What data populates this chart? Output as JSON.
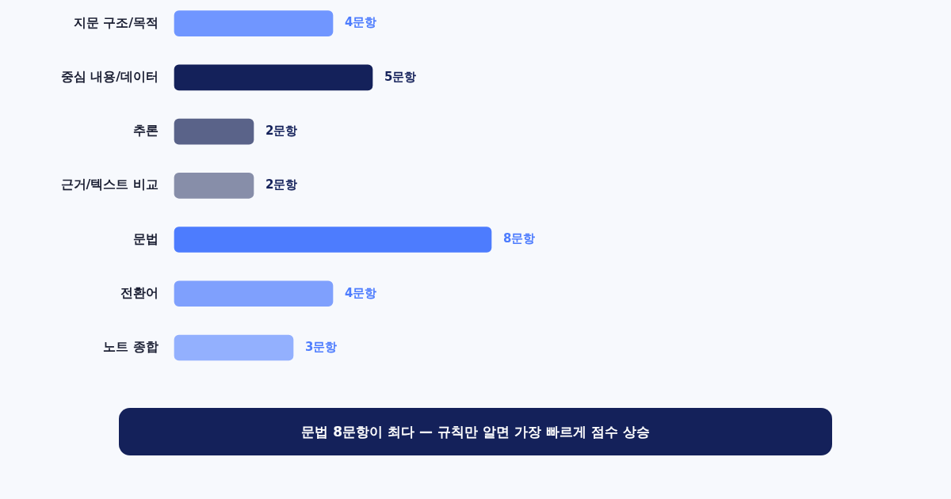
{
  "chart_data": {
    "type": "bar",
    "orientation": "horizontal",
    "categories": [
      "지문 구조/목적",
      "중심 내용/데이터",
      "추론",
      "근거/텍스트 비교",
      "문법",
      "전환어",
      "노트 종합"
    ],
    "values": [
      4,
      5,
      2,
      2,
      8,
      4,
      3
    ],
    "colors": [
      "#7096ff",
      "#14215a",
      "#5a6389",
      "#878ea9",
      "#4d7cfe",
      "#7fa0fd",
      "#93b0fe"
    ],
    "value_labels": [
      "4문항",
      "5문항",
      "2문항",
      "2문항",
      "8문항",
      "4문항",
      "3문항"
    ],
    "tick_labels": "y",
    "annotations": [
      "문법 8문항이 최다 — 규칙만 알면 가장 빠르게 점수 상승"
    ]
  }
}
